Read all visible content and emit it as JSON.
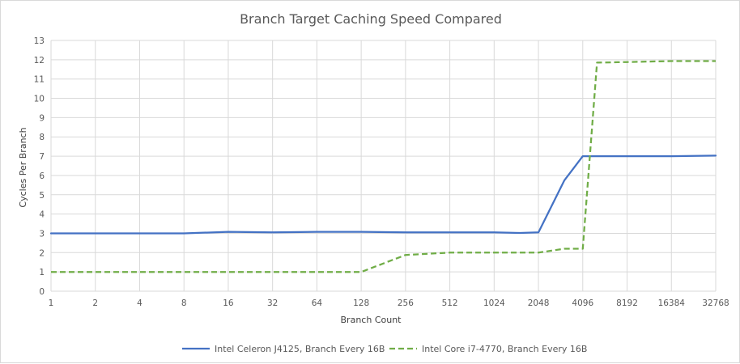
{
  "chart_data": {
    "type": "line",
    "title": "Branch Target Caching Speed Compared",
    "xlabel": "Branch Count",
    "ylabel": "Cycles Per Branch",
    "ylim": [
      0,
      13
    ],
    "grid": true,
    "legend_position": "bottom",
    "categories": [
      "1",
      "2",
      "4",
      "8",
      "16",
      "32",
      "64",
      "128",
      "256",
      "512",
      "1024",
      "2048",
      "4096",
      "8192",
      "16384",
      "32768"
    ],
    "series": [
      {
        "name": "Intel Celeron J4125, Branch Every 16B",
        "color": "#4472c4",
        "style": "solid",
        "points": [
          [
            1,
            3.0
          ],
          [
            2,
            3.0
          ],
          [
            4,
            3.0
          ],
          [
            8,
            3.0
          ],
          [
            16,
            3.08
          ],
          [
            32,
            3.05
          ],
          [
            64,
            3.08
          ],
          [
            128,
            3.08
          ],
          [
            256,
            3.05
          ],
          [
            512,
            3.05
          ],
          [
            1024,
            3.05
          ],
          [
            1536,
            3.02
          ],
          [
            2048,
            3.05
          ],
          [
            3072,
            5.75
          ],
          [
            4096,
            7.0
          ],
          [
            8192,
            7.0
          ],
          [
            16384,
            7.0
          ],
          [
            32768,
            7.03
          ]
        ]
      },
      {
        "name": "Intel Core i7-4770, Branch Every 16B",
        "color": "#70ad47",
        "style": "dashed",
        "points": [
          [
            1,
            1.0
          ],
          [
            2,
            1.0
          ],
          [
            4,
            1.0
          ],
          [
            8,
            1.0
          ],
          [
            16,
            1.0
          ],
          [
            32,
            1.0
          ],
          [
            64,
            1.0
          ],
          [
            128,
            1.0
          ],
          [
            256,
            1.88
          ],
          [
            512,
            2.0
          ],
          [
            1024,
            2.0
          ],
          [
            2048,
            2.0
          ],
          [
            3072,
            2.2
          ],
          [
            4096,
            2.2
          ],
          [
            5120,
            11.85
          ],
          [
            8192,
            11.88
          ],
          [
            16384,
            11.93
          ],
          [
            32768,
            11.93
          ]
        ]
      }
    ]
  }
}
